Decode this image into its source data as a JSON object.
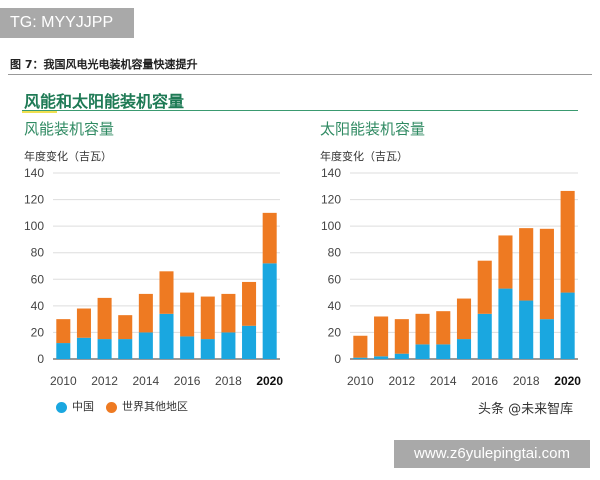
{
  "tag": "TG: MYYJJPP",
  "figure_caption": "图 7：我国风电光电装机容量快速提升",
  "main_title": "风能和太阳能装机容量",
  "legend": [
    "中国",
    "世界其他地区"
  ],
  "colors": {
    "china": "#1aa7e0",
    "rest": "#ee7a22"
  },
  "watermark": "头条 @未来智库",
  "url": "www.z6yulepingtai.com",
  "chart_data": [
    {
      "type": "bar",
      "stacked": true,
      "title": "风能装机容量",
      "ylabel": "年度变化（吉瓦）",
      "ylim": [
        0,
        140
      ],
      "yticks": [
        0,
        20,
        40,
        60,
        80,
        100,
        120,
        140
      ],
      "grid": true,
      "categories": [
        "2010",
        "2011",
        "2012",
        "2013",
        "2014",
        "2015",
        "2016",
        "2017",
        "2018",
        "2019",
        "2020"
      ],
      "xtick_labels": [
        "2010",
        "2012",
        "2014",
        "2016",
        "2018",
        "2020"
      ],
      "series": [
        {
          "name": "中国",
          "values": [
            12,
            16,
            15,
            15,
            20,
            34,
            17,
            15,
            20,
            25,
            72
          ]
        },
        {
          "name": "世界其他地区",
          "values": [
            18,
            22,
            31,
            18,
            29,
            32,
            33,
            32,
            29,
            33,
            38
          ]
        }
      ]
    },
    {
      "type": "bar",
      "stacked": true,
      "title": "太阳能装机容量",
      "ylabel": "年度变化（吉瓦）",
      "ylim": [
        0,
        140
      ],
      "yticks": [
        0,
        20,
        40,
        60,
        80,
        100,
        120,
        140
      ],
      "grid": true,
      "categories": [
        "2010",
        "2011",
        "2012",
        "2013",
        "2014",
        "2015",
        "2016",
        "2017",
        "2018",
        "2019",
        "2020"
      ],
      "xtick_labels": [
        "2010",
        "2012",
        "2014",
        "2016",
        "2018",
        "2020"
      ],
      "series": [
        {
          "name": "中国",
          "values": [
            1,
            2,
            4,
            11,
            11,
            15,
            34,
            53,
            44,
            30,
            50
          ]
        },
        {
          "name": "世界其他地区",
          "values": [
            16.5,
            30,
            26,
            23,
            25,
            30.5,
            40,
            40,
            54.5,
            68,
            76.5
          ]
        }
      ]
    }
  ]
}
